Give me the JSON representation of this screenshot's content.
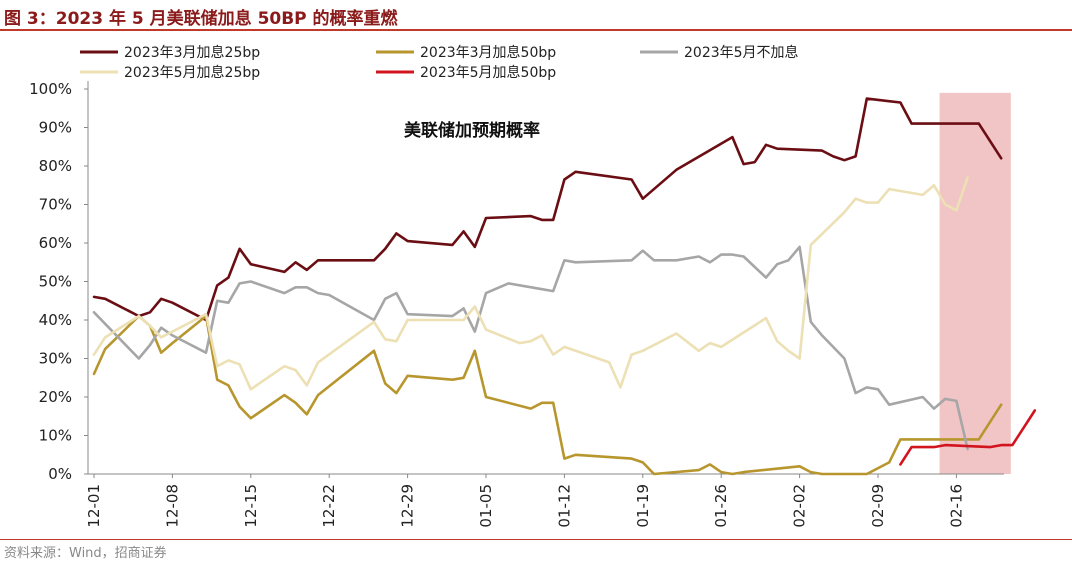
{
  "header": {
    "title": "图 3：2023 年 5 月美联储加息 50BP 的概率重燃"
  },
  "footer": {
    "source": "资料来源：Wind，招商证券"
  },
  "colors": {
    "s25_mar": "#6b0e14",
    "s50_mar": "#b8962e",
    "nohike_may": "#a6a6a6",
    "s25_may": "#ece0b4",
    "s50_may": "#d2141e",
    "highlight": "#f1c4c6",
    "axis": "#888888"
  },
  "chart_data": {
    "type": "line",
    "title": "美联储加预期概率",
    "xlabel": "",
    "ylabel": "",
    "ylim": [
      0,
      100
    ],
    "yticks": [
      "0%",
      "10%",
      "20%",
      "30%",
      "40%",
      "50%",
      "60%",
      "70%",
      "80%",
      "90%",
      "100%"
    ],
    "x_tick_labels": [
      "12-01",
      "12-08",
      "12-15",
      "12-22",
      "12-29",
      "01-05",
      "01-12",
      "01-19",
      "01-26",
      "02-02",
      "02-09",
      "02-16"
    ],
    "x_range_days": [
      0,
      81
    ],
    "highlight_range_days": [
      75.5,
      81.5
    ],
    "series": [
      {
        "name": "2023年3月加息25bp",
        "color_key": "s25_mar",
        "points": [
          [
            0,
            46
          ],
          [
            1,
            45.5
          ],
          [
            4,
            41
          ],
          [
            5,
            42
          ],
          [
            6,
            45.5
          ],
          [
            7,
            44.5
          ],
          [
            10,
            40
          ],
          [
            11,
            49
          ],
          [
            12,
            51
          ],
          [
            13,
            58.5
          ],
          [
            14,
            54.5
          ],
          [
            17,
            52.5
          ],
          [
            18,
            55
          ],
          [
            19,
            53
          ],
          [
            20,
            55.5
          ],
          [
            25,
            55.5
          ],
          [
            26,
            58.5
          ],
          [
            27,
            62.5
          ],
          [
            28,
            60.5
          ],
          [
            32,
            59.5
          ],
          [
            33,
            63
          ],
          [
            34,
            59
          ],
          [
            35,
            66.5
          ],
          [
            39,
            67
          ],
          [
            40,
            66
          ],
          [
            41,
            66
          ],
          [
            42,
            76.5
          ],
          [
            43,
            78.5
          ],
          [
            48,
            76.5
          ],
          [
            49,
            71.5
          ],
          [
            52,
            79
          ],
          [
            57,
            87.5
          ],
          [
            58,
            80.5
          ],
          [
            59,
            81
          ],
          [
            60,
            85.5
          ],
          [
            61,
            84.5
          ],
          [
            65,
            84
          ],
          [
            66,
            82.5
          ],
          [
            67,
            81.5
          ],
          [
            68,
            82.5
          ],
          [
            69,
            97.5
          ],
          [
            72,
            96.5
          ],
          [
            73,
            91
          ],
          [
            79,
            91
          ],
          [
            81,
            82
          ]
        ]
      },
      {
        "name": "2023年3月加息50bp",
        "color_key": "s50_mar",
        "points": [
          [
            0,
            26
          ],
          [
            1,
            32.5
          ],
          [
            4,
            41
          ],
          [
            5,
            38.5
          ],
          [
            6,
            31.5
          ],
          [
            7,
            34
          ],
          [
            10,
            41
          ],
          [
            11,
            24.5
          ],
          [
            12,
            23
          ],
          [
            13,
            17.5
          ],
          [
            14,
            14.5
          ],
          [
            17,
            20.5
          ],
          [
            18,
            18.5
          ],
          [
            19,
            15.5
          ],
          [
            20,
            20.5
          ],
          [
            25,
            32
          ],
          [
            26,
            23.5
          ],
          [
            27,
            21
          ],
          [
            28,
            25.5
          ],
          [
            32,
            24.5
          ],
          [
            33,
            25
          ],
          [
            34,
            32
          ],
          [
            35,
            20
          ],
          [
            39,
            17
          ],
          [
            40,
            18.5
          ],
          [
            41,
            18.5
          ],
          [
            42,
            4
          ],
          [
            43,
            5
          ],
          [
            48,
            4
          ],
          [
            49,
            3
          ],
          [
            50,
            0
          ],
          [
            54,
            1
          ],
          [
            55,
            2.5
          ],
          [
            56,
            0.5
          ],
          [
            57,
            0
          ],
          [
            58,
            0.5
          ],
          [
            63,
            2
          ],
          [
            64,
            0.5
          ],
          [
            65,
            0
          ],
          [
            69,
            0
          ],
          [
            71,
            3
          ],
          [
            72,
            9
          ],
          [
            79,
            9
          ],
          [
            81,
            18
          ]
        ]
      },
      {
        "name": "2023年5月不加息",
        "color_key": "nohike_may",
        "points": [
          [
            0,
            42
          ],
          [
            4,
            30
          ],
          [
            5,
            33.5
          ],
          [
            6,
            38
          ],
          [
            7,
            36
          ],
          [
            10,
            31.5
          ],
          [
            11,
            45
          ],
          [
            12,
            44.5
          ],
          [
            13,
            49.5
          ],
          [
            14,
            50
          ],
          [
            17,
            47
          ],
          [
            18,
            48.5
          ],
          [
            19,
            48.5
          ],
          [
            20,
            47
          ],
          [
            21,
            46.5
          ],
          [
            25,
            40
          ],
          [
            26,
            45.5
          ],
          [
            27,
            47
          ],
          [
            28,
            41.5
          ],
          [
            32,
            41
          ],
          [
            33,
            43
          ],
          [
            34,
            37
          ],
          [
            35,
            47
          ],
          [
            37,
            49.5
          ],
          [
            40,
            48
          ],
          [
            41,
            47.5
          ],
          [
            42,
            55.5
          ],
          [
            43,
            55
          ],
          [
            48,
            55.5
          ],
          [
            49,
            58
          ],
          [
            50,
            55.5
          ],
          [
            52,
            55.5
          ],
          [
            54,
            56.5
          ],
          [
            55,
            55
          ],
          [
            56,
            57
          ],
          [
            57,
            57
          ],
          [
            58,
            56.5
          ],
          [
            60,
            51
          ],
          [
            61,
            54.5
          ],
          [
            62,
            55.5
          ],
          [
            63,
            59
          ],
          [
            64,
            39.5
          ],
          [
            65,
            36
          ],
          [
            67,
            30
          ],
          [
            68,
            21
          ],
          [
            69,
            22.5
          ],
          [
            70,
            22
          ],
          [
            71,
            18
          ],
          [
            74,
            20
          ],
          [
            75,
            17
          ],
          [
            76,
            19.5
          ],
          [
            77,
            19
          ],
          [
            78,
            6.5
          ]
        ]
      },
      {
        "name": "2023年5月加息25bp",
        "color_key": "s25_may",
        "points": [
          [
            0,
            31
          ],
          [
            1,
            35.5
          ],
          [
            4,
            41
          ],
          [
            5,
            38.5
          ],
          [
            6,
            35.5
          ],
          [
            7,
            37
          ],
          [
            10,
            41.5
          ],
          [
            11,
            28
          ],
          [
            12,
            29.5
          ],
          [
            13,
            28.5
          ],
          [
            14,
            22
          ],
          [
            17,
            28
          ],
          [
            18,
            27
          ],
          [
            19,
            23
          ],
          [
            20,
            29
          ],
          [
            25,
            39.5
          ],
          [
            26,
            35
          ],
          [
            27,
            34.5
          ],
          [
            28,
            40
          ],
          [
            32,
            40
          ],
          [
            33,
            40
          ],
          [
            34,
            43.5
          ],
          [
            35,
            37.5
          ],
          [
            38,
            34
          ],
          [
            39,
            34.5
          ],
          [
            40,
            36
          ],
          [
            41,
            31
          ],
          [
            42,
            33
          ],
          [
            46,
            29
          ],
          [
            47,
            22.5
          ],
          [
            48,
            31
          ],
          [
            49,
            32
          ],
          [
            52,
            36.5
          ],
          [
            54,
            32
          ],
          [
            55,
            34
          ],
          [
            56,
            33
          ],
          [
            60,
            40.5
          ],
          [
            61,
            34.5
          ],
          [
            62,
            32
          ],
          [
            63,
            30
          ],
          [
            64,
            59.5
          ],
          [
            67,
            68
          ],
          [
            68,
            71.5
          ],
          [
            69,
            70.5
          ],
          [
            70,
            70.5
          ],
          [
            71,
            74
          ],
          [
            74,
            72.5
          ],
          [
            75,
            75
          ],
          [
            76,
            70
          ],
          [
            77,
            68.5
          ],
          [
            78,
            77
          ]
        ]
      },
      {
        "name": "2023年5月加息50bp",
        "color_key": "s50_may",
        "points": [
          [
            72,
            2.5
          ],
          [
            73,
            7
          ],
          [
            75,
            7
          ],
          [
            76,
            7.5
          ],
          [
            80,
            7
          ],
          [
            81,
            7.5
          ],
          [
            82,
            7.5
          ],
          [
            83,
            12
          ],
          [
            84,
            16.5
          ]
        ]
      }
    ]
  }
}
